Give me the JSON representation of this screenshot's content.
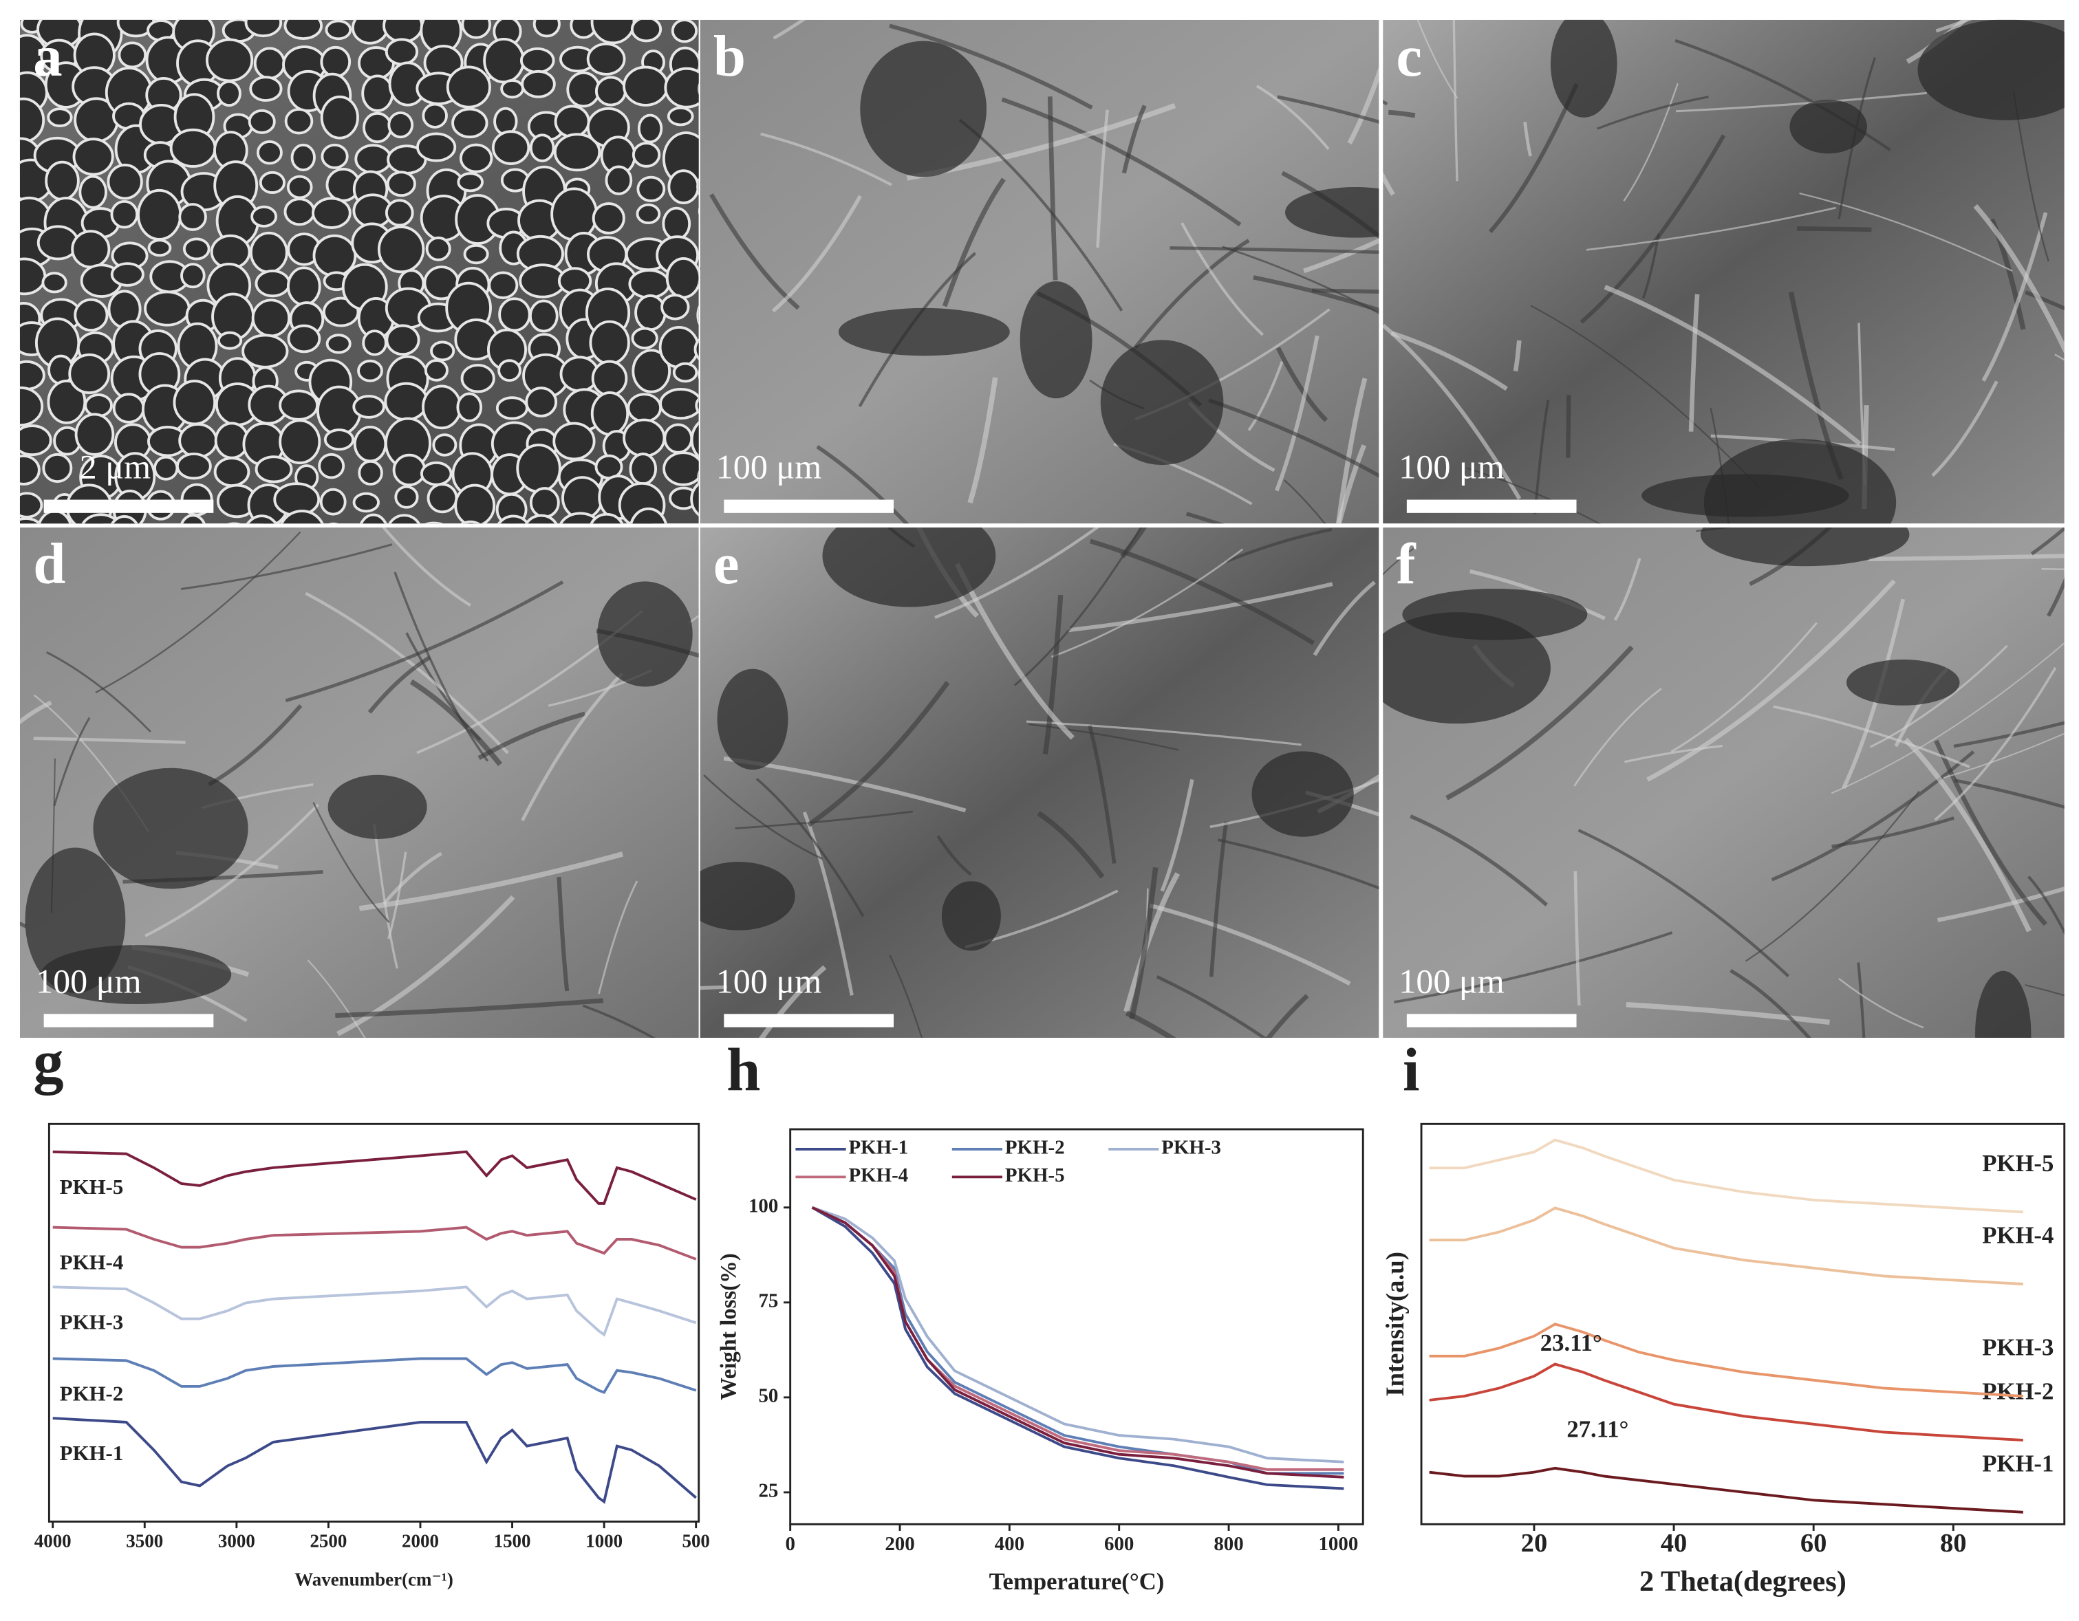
{
  "panels": [
    {
      "label": "a",
      "scale_bar": "2 μm"
    },
    {
      "label": "b",
      "scale_bar": "100 μm"
    },
    {
      "label": "c",
      "scale_bar": "100 μm"
    },
    {
      "label": "d",
      "scale_bar": "100 μm"
    },
    {
      "label": "e",
      "scale_bar": "100 μm"
    },
    {
      "label": "f",
      "scale_bar": "100 μm"
    }
  ],
  "chart_data": [
    {
      "type": "line",
      "panel_label": "g",
      "xlabel": "Wavenumber(cm⁻¹)",
      "xlim": [
        4020,
        485
      ],
      "xticks": [
        4000,
        3500,
        3000,
        2500,
        2000,
        1500,
        1000,
        500
      ],
      "ylim": [
        0,
        100
      ],
      "legend": "inline-left",
      "x": [
        4000,
        3600,
        3450,
        3300,
        3200,
        3050,
        2950,
        2800,
        2000,
        1750,
        1640,
        1560,
        1500,
        1420,
        1200,
        1150,
        1030,
        1000,
        930,
        850,
        700,
        500
      ],
      "series": [
        {
          "name": "PKH-1",
          "color": "#3d4a8a",
          "values": [
            26,
            25,
            18,
            10,
            9,
            14,
            16,
            20,
            25,
            25,
            15,
            21,
            23,
            19,
            21,
            13,
            6,
            5,
            19,
            18,
            14,
            6
          ]
        },
        {
          "name": "PKH-2",
          "color": "#5e7fb5",
          "values": [
            41,
            40.5,
            38,
            34,
            34,
            36,
            38,
            39,
            41,
            41,
            37,
            39.5,
            40,
            38.5,
            39.5,
            36,
            33,
            32.5,
            38,
            37.5,
            36,
            33
          ]
        },
        {
          "name": "PKH-3",
          "color": "#b7c4dc",
          "values": [
            59,
            58.5,
            55,
            51,
            51,
            53,
            55,
            56,
            58,
            59,
            54,
            57,
            58,
            56,
            57,
            53,
            48,
            47,
            56,
            55,
            53,
            50
          ]
        },
        {
          "name": "PKH-4",
          "color": "#b25a6f",
          "values": [
            74,
            73.5,
            71,
            69,
            69,
            70,
            71,
            72,
            73,
            74,
            71,
            72.5,
            73,
            72,
            73,
            70,
            68,
            67.5,
            71,
            71,
            69.5,
            66
          ]
        },
        {
          "name": "PKH-5",
          "color": "#7a1f3d",
          "values": [
            93,
            92.5,
            89,
            85,
            84.5,
            87,
            88,
            89,
            92,
            93,
            87,
            91,
            92,
            89,
            91,
            86,
            80,
            80,
            89,
            88,
            85,
            81
          ]
        }
      ]
    },
    {
      "type": "line",
      "panel_label": "h",
      "xlabel": "Temperature(°C)",
      "ylabel": "Weight loss(%)",
      "xlim": [
        0,
        1045
      ],
      "xticks": [
        0,
        200,
        400,
        600,
        800,
        1000
      ],
      "ylim": [
        16.6,
        120.6
      ],
      "yticks": [
        25,
        50,
        75,
        100
      ],
      "legend": "upper left",
      "x": [
        40,
        100,
        150,
        190,
        210,
        250,
        300,
        400,
        500,
        600,
        700,
        800,
        870,
        1010
      ],
      "series": [
        {
          "name": "PKH-1",
          "color": "#3d4a8a",
          "values": [
            100,
            95,
            88,
            80,
            68,
            58,
            51,
            44,
            37,
            34,
            32,
            29,
            27,
            26
          ]
        },
        {
          "name": "PKH-2",
          "color": "#5e7fb5",
          "values": [
            100,
            96,
            90,
            84,
            72,
            62,
            54,
            47,
            40,
            37,
            35,
            33,
            30,
            30
          ]
        },
        {
          "name": "PKH-3",
          "color": "#9fb0d0",
          "values": [
            100,
            97,
            92,
            86,
            76,
            66,
            57,
            50,
            43,
            40,
            39,
            37,
            34,
            33
          ]
        },
        {
          "name": "PKH-4",
          "color": "#c06a7e",
          "values": [
            100,
            96,
            90,
            83,
            70,
            60,
            53,
            46,
            39,
            36,
            35,
            33,
            31,
            31
          ]
        },
        {
          "name": "PKH-5",
          "color": "#7a1f3d",
          "values": [
            100,
            96,
            90,
            82,
            70,
            60,
            52,
            45,
            38,
            35,
            34,
            32,
            30,
            29
          ]
        }
      ]
    },
    {
      "type": "line",
      "panel_label": "i",
      "xlabel": "2 Theta(degrees)",
      "ylabel": "Intensity(a.u)",
      "xlim": [
        3.86,
        95.9
      ],
      "xticks": [
        20,
        40,
        60,
        80
      ],
      "ylim": [
        0,
        100
      ],
      "legend": "inline-right",
      "annotations": [
        "23.11°",
        "27.11°"
      ],
      "x": [
        5,
        10,
        15,
        20,
        23,
        27,
        30,
        35,
        40,
        50,
        60,
        70,
        80,
        90
      ],
      "series": [
        {
          "name": "PKH-1",
          "color": "#6b1a1f",
          "values": [
            13,
            12,
            12,
            13,
            14,
            13,
            12,
            11,
            10,
            8,
            6,
            5,
            4,
            3
          ]
        },
        {
          "name": "PKH-2",
          "color": "#c8453a",
          "values": [
            31,
            32,
            34,
            37,
            40,
            38,
            36,
            33,
            30,
            27,
            25,
            23,
            22,
            21
          ]
        },
        {
          "name": "PKH-3",
          "color": "#e8956a",
          "values": [
            42,
            42,
            44,
            47,
            50,
            48,
            46,
            43,
            41,
            38,
            36,
            34,
            33,
            32
          ]
        },
        {
          "name": "PKH-4",
          "color": "#ecc09a",
          "values": [
            71,
            71,
            73,
            76,
            79,
            77,
            75,
            72,
            69,
            66,
            64,
            62,
            61,
            60
          ]
        },
        {
          "name": "PKH-5",
          "color": "#f1d9c0",
          "values": [
            89,
            89,
            91,
            93,
            96,
            94,
            92,
            89,
            86,
            83,
            81,
            80,
            79,
            78
          ]
        }
      ]
    }
  ]
}
